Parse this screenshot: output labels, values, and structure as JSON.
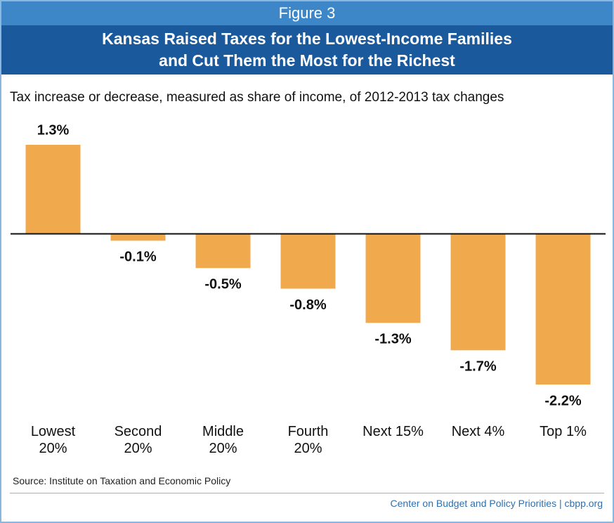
{
  "figure_label": "Figure 3",
  "chart_data": {
    "type": "bar",
    "title": "Kansas Raised Taxes for the Lowest-Income Families and Cut Them the Most for the Richest",
    "subtitle": "Tax increase or decrease, measured as share of income, of 2012-2013 tax changes",
    "categories": [
      "Lowest 20%",
      "Second 20%",
      "Middle 20%",
      "Fourth 20%",
      "Next 15%",
      "Next 4%",
      "Top 1%"
    ],
    "values": [
      1.3,
      -0.1,
      -0.5,
      -0.8,
      -1.3,
      -1.7,
      -2.2
    ],
    "value_labels": [
      "1.3%",
      "-0.1%",
      "-0.5%",
      "-0.8%",
      "-1.3%",
      "-1.7%",
      "-2.2%"
    ],
    "color": "#f0a94c",
    "source": "Source: Institute on Taxation and Economic Policy",
    "credit": "Center on Budget and Policy Priorities | cbpp.org"
  }
}
